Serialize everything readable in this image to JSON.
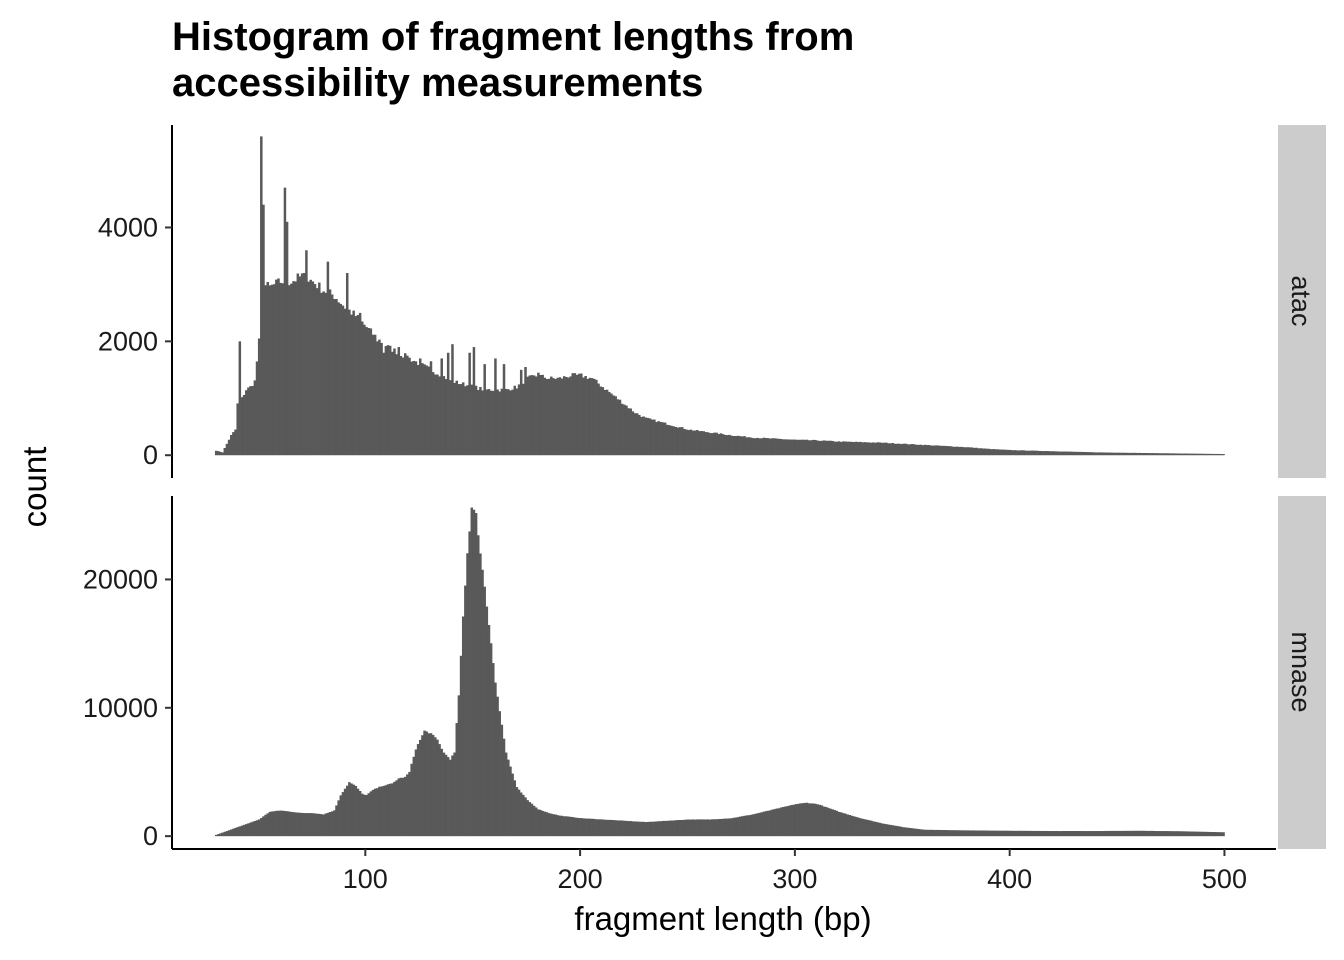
{
  "chart_data": {
    "type": "bar",
    "title_lines": [
      "Histogram of fragment lengths from",
      "accessibility measurements"
    ],
    "xlabel": "fragment length (bp)",
    "ylabel": "count",
    "xlim": [
      10,
      524
    ],
    "x_ticks": [
      100,
      200,
      300,
      400,
      500
    ],
    "bin_width": 1,
    "bar_color": "#595959",
    "strip_color": "#cccccc",
    "grid": false,
    "facets": [
      {
        "name": "atac",
        "ylim": [
          -400,
          5800
        ],
        "y_ticks": [
          0,
          2000,
          4000
        ],
        "profile": [
          [
            30,
            80
          ],
          [
            33,
            50
          ],
          [
            35,
            200
          ],
          [
            37,
            350
          ],
          [
            39,
            450
          ],
          [
            40,
            900
          ],
          [
            42,
            1000
          ],
          [
            44,
            1150
          ],
          [
            46,
            1200
          ],
          [
            48,
            1300
          ],
          [
            50,
            2000
          ],
          [
            52,
            3000
          ],
          [
            55,
            2950
          ],
          [
            60,
            3050
          ],
          [
            65,
            3050
          ],
          [
            70,
            3150
          ],
          [
            75,
            3050
          ],
          [
            80,
            2900
          ],
          [
            85,
            2800
          ],
          [
            90,
            2600
          ],
          [
            95,
            2450
          ],
          [
            100,
            2250
          ],
          [
            105,
            2050
          ],
          [
            110,
            1900
          ],
          [
            115,
            1800
          ],
          [
            120,
            1700
          ],
          [
            125,
            1600
          ],
          [
            130,
            1500
          ],
          [
            135,
            1400
          ],
          [
            140,
            1300
          ],
          [
            145,
            1250
          ],
          [
            150,
            1200
          ],
          [
            155,
            1150
          ],
          [
            160,
            1150
          ],
          [
            165,
            1150
          ],
          [
            170,
            1200
          ],
          [
            175,
            1350
          ],
          [
            180,
            1400
          ],
          [
            185,
            1350
          ],
          [
            190,
            1350
          ],
          [
            195,
            1400
          ],
          [
            200,
            1400
          ],
          [
            205,
            1350
          ],
          [
            210,
            1200
          ],
          [
            215,
            1050
          ],
          [
            220,
            900
          ],
          [
            225,
            750
          ],
          [
            230,
            650
          ],
          [
            235,
            600
          ],
          [
            240,
            550
          ],
          [
            245,
            500
          ],
          [
            250,
            450
          ],
          [
            260,
            400
          ],
          [
            270,
            350
          ],
          [
            280,
            310
          ],
          [
            290,
            290
          ],
          [
            300,
            270
          ],
          [
            310,
            260
          ],
          [
            320,
            240
          ],
          [
            330,
            230
          ],
          [
            340,
            220
          ],
          [
            350,
            200
          ],
          [
            360,
            180
          ],
          [
            370,
            160
          ],
          [
            380,
            140
          ],
          [
            390,
            110
          ],
          [
            400,
            90
          ],
          [
            420,
            70
          ],
          [
            440,
            50
          ],
          [
            460,
            40
          ],
          [
            480,
            30
          ],
          [
            500,
            20
          ]
        ],
        "spikes": [
          [
            41,
            2000
          ],
          [
            51,
            5600
          ],
          [
            52,
            4400
          ],
          [
            62,
            4700
          ],
          [
            63,
            4100
          ],
          [
            72,
            3600
          ],
          [
            82,
            3400
          ],
          [
            91,
            3200
          ],
          [
            97,
            2500
          ],
          [
            105,
            2000
          ],
          [
            108,
            1800
          ],
          [
            115,
            1900
          ],
          [
            119,
            1750
          ],
          [
            125,
            1700
          ],
          [
            130,
            1650
          ],
          [
            135,
            1700
          ],
          [
            138,
            1800
          ],
          [
            140,
            1950
          ],
          [
            148,
            1800
          ],
          [
            150,
            1900
          ],
          [
            155,
            1600
          ],
          [
            160,
            1700
          ],
          [
            164,
            1600
          ],
          [
            172,
            1500
          ],
          [
            174,
            1550
          ],
          [
            180,
            1450
          ]
        ]
      },
      {
        "name": "mnase",
        "ylim": [
          -1000,
          26500
        ],
        "y_ticks": [
          0,
          10000,
          20000
        ],
        "profile": [
          [
            30,
            100
          ],
          [
            35,
            400
          ],
          [
            40,
            700
          ],
          [
            45,
            1000
          ],
          [
            50,
            1300
          ],
          [
            55,
            1900
          ],
          [
            60,
            2000
          ],
          [
            65,
            1900
          ],
          [
            70,
            1800
          ],
          [
            75,
            1800
          ],
          [
            80,
            1700
          ],
          [
            85,
            2000
          ],
          [
            88,
            3200
          ],
          [
            92,
            4200
          ],
          [
            95,
            3900
          ],
          [
            98,
            3300
          ],
          [
            100,
            3200
          ],
          [
            103,
            3600
          ],
          [
            107,
            3900
          ],
          [
            112,
            4100
          ],
          [
            115,
            4500
          ],
          [
            118,
            4600
          ],
          [
            120,
            5000
          ],
          [
            123,
            6800
          ],
          [
            127,
            8200
          ],
          [
            130,
            8000
          ],
          [
            133,
            7500
          ],
          [
            136,
            6500
          ],
          [
            139,
            6000
          ],
          [
            141,
            6500
          ],
          [
            143,
            11000
          ],
          [
            145,
            17000
          ],
          [
            147,
            22000
          ],
          [
            149,
            25700
          ],
          [
            151,
            25200
          ],
          [
            153,
            22000
          ],
          [
            156,
            18000
          ],
          [
            160,
            12000
          ],
          [
            165,
            6500
          ],
          [
            170,
            3800
          ],
          [
            175,
            2800
          ],
          [
            180,
            2100
          ],
          [
            185,
            1800
          ],
          [
            190,
            1600
          ],
          [
            200,
            1400
          ],
          [
            210,
            1300
          ],
          [
            220,
            1200
          ],
          [
            230,
            1100
          ],
          [
            240,
            1200
          ],
          [
            250,
            1300
          ],
          [
            260,
            1300
          ],
          [
            270,
            1400
          ],
          [
            280,
            1700
          ],
          [
            290,
            2100
          ],
          [
            300,
            2500
          ],
          [
            305,
            2600
          ],
          [
            310,
            2500
          ],
          [
            320,
            1900
          ],
          [
            330,
            1400
          ],
          [
            340,
            1000
          ],
          [
            350,
            700
          ],
          [
            360,
            500
          ],
          [
            380,
            450
          ],
          [
            400,
            420
          ],
          [
            420,
            400
          ],
          [
            440,
            400
          ],
          [
            460,
            420
          ],
          [
            480,
            380
          ],
          [
            500,
            300
          ]
        ],
        "spikes": []
      }
    ]
  }
}
